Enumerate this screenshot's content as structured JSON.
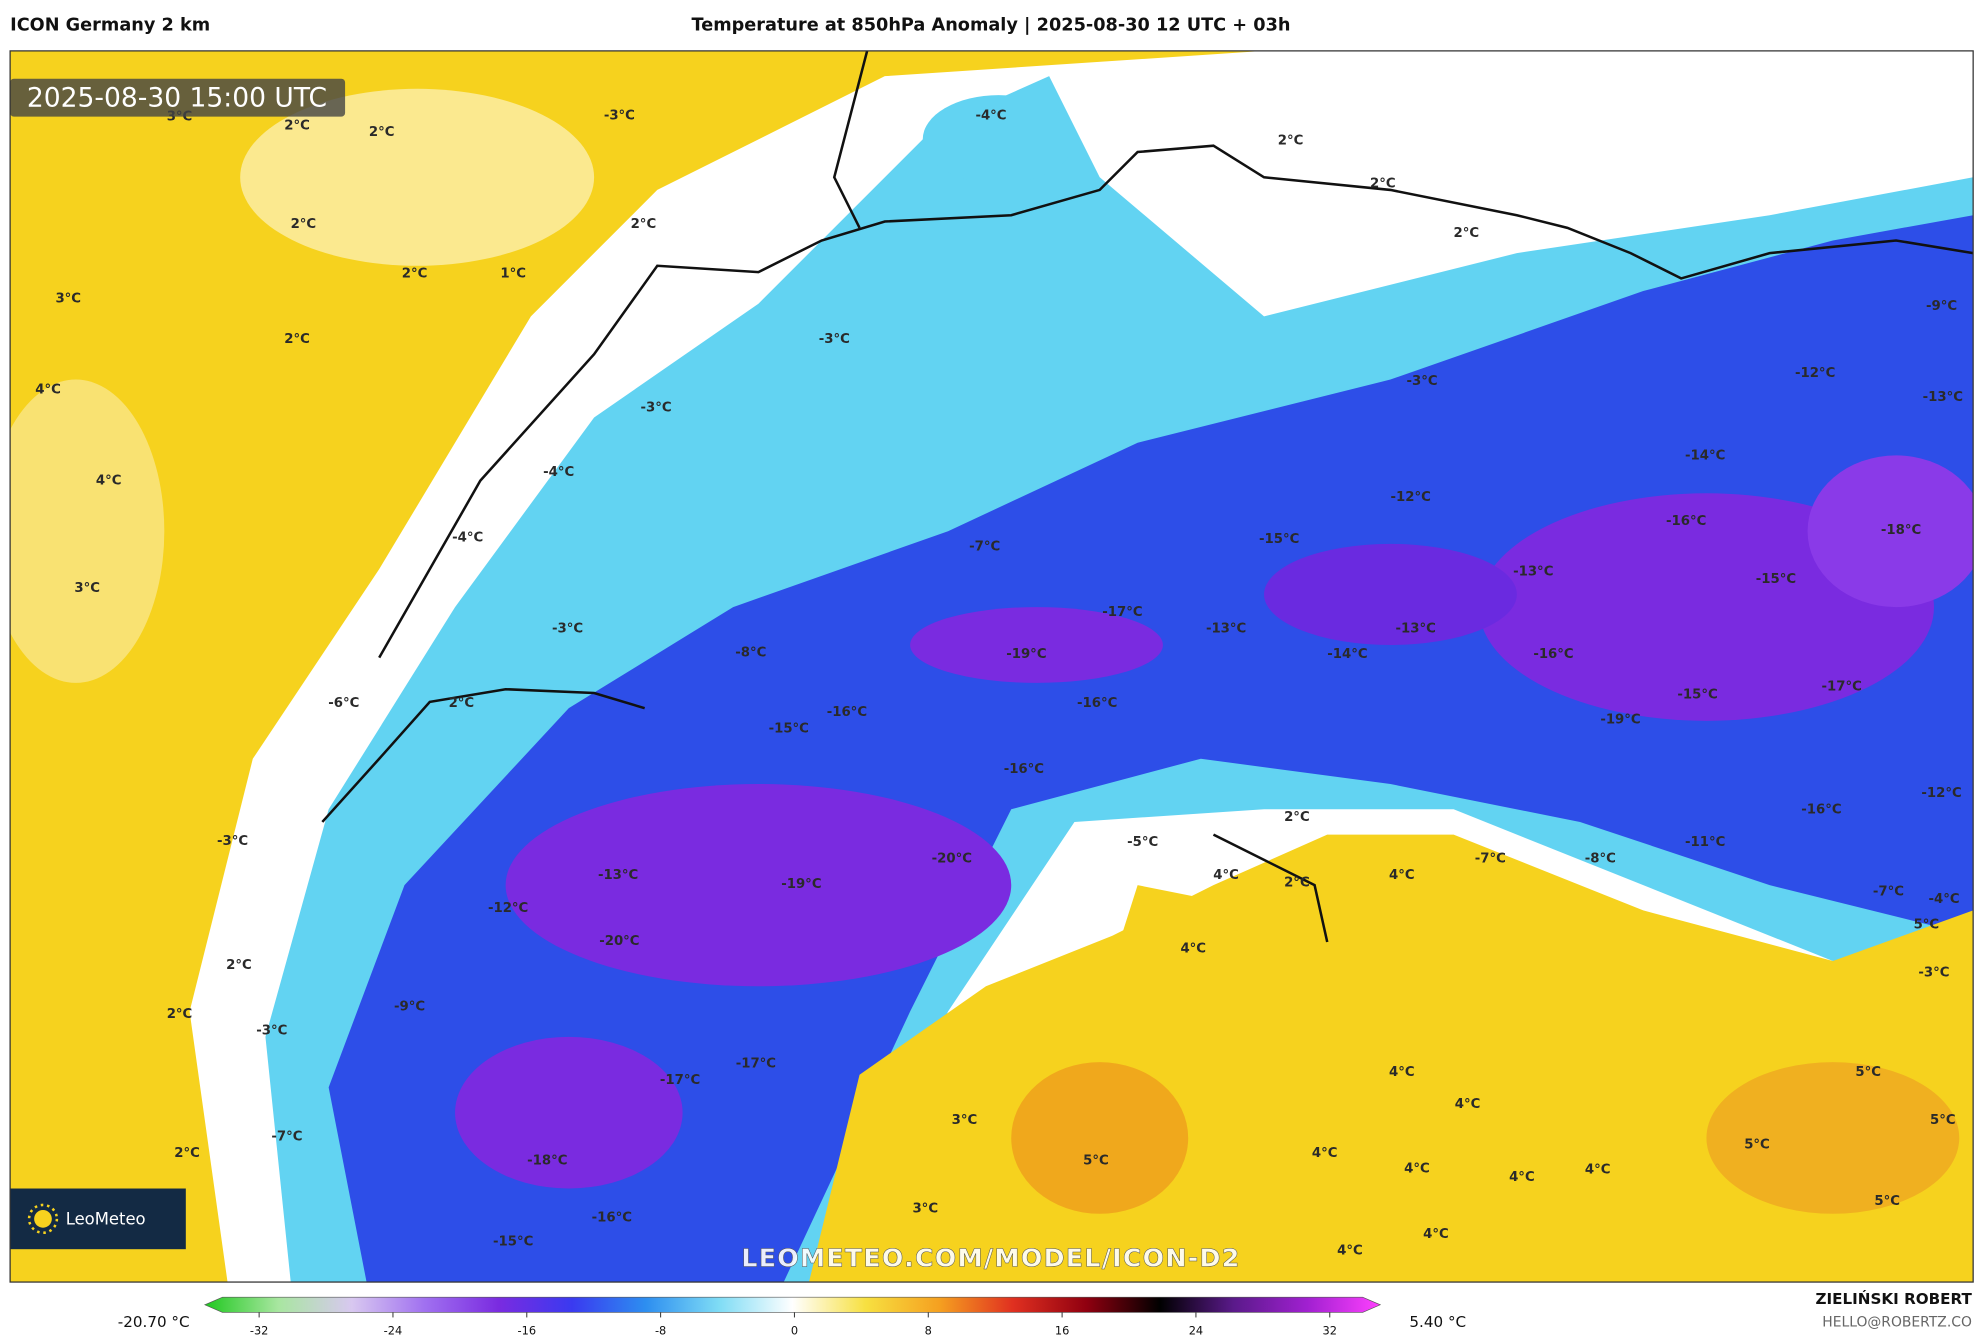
{
  "header": {
    "model": "ICON Germany 2 km",
    "title": "Temperature at 850hPa Anomaly | 2025-08-30 12 UTC + 03h"
  },
  "map": {
    "timestamp": "2025-08-30 15:00 UTC",
    "watermark": "LEOMETEO.COM/MODEL/ICON-D2",
    "logo": "LeoMeteo",
    "labels": [
      "3°C",
      "2°C",
      "2°C",
      "-3°C",
      "-4°C",
      "2°C",
      "2°C",
      "2°C",
      "2°C",
      "2°C",
      "2°C",
      "1°C",
      "3°C",
      "2°C",
      "-3°C",
      "-9°C",
      "4°C",
      "-3°C",
      "-3°C",
      "-12°C",
      "-13°C",
      "-14°C",
      "4°C",
      "-4°C",
      "-12°C",
      "-16°C",
      "-18°C",
      "-4°C",
      "-7°C",
      "-15°C",
      "3°C",
      "-13°C",
      "-15°C",
      "-17°C",
      "-3°C",
      "-13°C",
      "-13°C",
      "-8°C",
      "-19°C",
      "-14°C",
      "-16°C",
      "-6°C",
      "2°C",
      "-16°C",
      "-15°C",
      "-17°C",
      "-16°C",
      "-15°C",
      "-19°C",
      "-16°C",
      "-12°C",
      "-16°C",
      "2°C",
      "-3°C",
      "-5°C",
      "-11°C",
      "-20°C",
      "-7°C",
      "-8°C",
      "-13°C",
      "4°C",
      "4°C",
      "-19°C",
      "2°C",
      "-7°C",
      "-4°C",
      "-12°C",
      "5°C",
      "-20°C",
      "4°C",
      "2°C",
      "-3°C",
      "-9°C",
      "2°C",
      "-3°C",
      "-17°C",
      "4°C",
      "5°C",
      "-17°C",
      "4°C",
      "3°C",
      "5°C",
      "-7°C",
      "2°C",
      "4°C",
      "5°C",
      "-18°C",
      "5°C",
      "4°C",
      "4°C",
      "4°C",
      "3°C",
      "5°C",
      "-16°C",
      "4°C",
      "-15°C",
      "4°C"
    ]
  },
  "colorbar": {
    "min_label": "-20.70 °C",
    "max_label": "5.40 °C",
    "ticks": [
      -32,
      -24,
      -16,
      -8,
      0,
      8,
      16,
      24,
      32
    ],
    "colors": [
      "#1fc81f",
      "#a8e6a0",
      "#d8c8f0",
      "#a070f0",
      "#7a2be0",
      "#3a3af0",
      "#2d8ef0",
      "#7fdcf5",
      "#ffffff",
      "#f7e040",
      "#f5a020",
      "#e03020",
      "#900010",
      "#000000",
      "#5a1a8a",
      "#a020d0",
      "#ff40ff"
    ]
  },
  "footer": {
    "author": "ZIELIŃSKI ROBERT",
    "email": "HELLO@ROBERTZ.CO"
  }
}
